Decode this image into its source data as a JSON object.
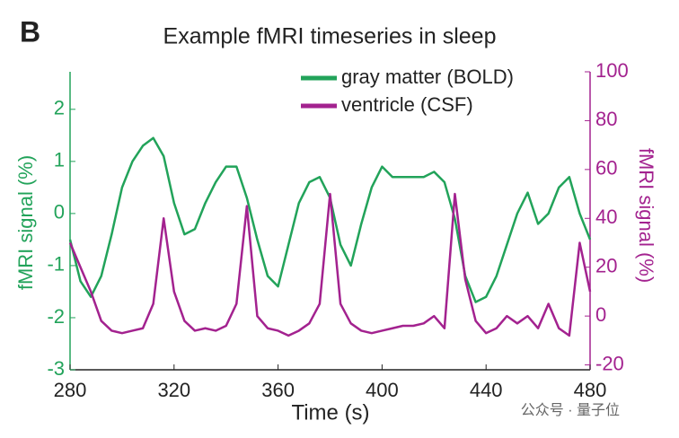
{
  "panel_label": "B",
  "watermark": "公众号 · 量子位",
  "chart_data": {
    "type": "line",
    "title": "Example fMRI timeseries in sleep",
    "x_label": "Time (s)",
    "y_label": "fMRI signal (%)",
    "y2_label": "fMRI signal (%)",
    "x": [
      280,
      284,
      288,
      292,
      296,
      300,
      304,
      308,
      312,
      316,
      320,
      324,
      328,
      332,
      336,
      340,
      344,
      348,
      352,
      356,
      360,
      364,
      368,
      372,
      376,
      380,
      384,
      388,
      392,
      396,
      400,
      404,
      408,
      412,
      416,
      420,
      424,
      428,
      432,
      436,
      440,
      444,
      448,
      452,
      456,
      460,
      464,
      468,
      472,
      476,
      480
    ],
    "series": [
      {
        "name": "gray matter (BOLD)",
        "color": "#22a35a",
        "values": [
          -0.5,
          -1.3,
          -1.6,
          -1.2,
          -0.4,
          0.5,
          1.0,
          1.3,
          1.45,
          1.1,
          0.2,
          -0.4,
          -0.3,
          0.2,
          0.6,
          0.9,
          0.9,
          0.3,
          -0.5,
          -1.2,
          -1.4,
          -0.6,
          0.2,
          0.6,
          0.7,
          0.3,
          -0.6,
          -1.0,
          -0.2,
          0.5,
          0.9,
          0.7,
          0.7,
          0.7,
          0.7,
          0.8,
          0.6,
          -0.1,
          -1.2,
          -1.7,
          -1.6,
          -1.2,
          -0.6,
          0.0,
          0.4,
          -0.2,
          0.0,
          0.5,
          0.7,
          0.0,
          -0.5
        ]
      },
      {
        "name": "ventricle (CSF)",
        "color": "#a3228f",
        "axis": "y2",
        "values": [
          30,
          20,
          10,
          -2,
          -6,
          -7,
          -6,
          -5,
          5,
          40,
          10,
          -2,
          -6,
          -5,
          -6,
          -4,
          5,
          45,
          0,
          -5,
          -6,
          -8,
          -6,
          -3,
          5,
          50,
          5,
          -3,
          -6,
          -7,
          -6,
          -5,
          -4,
          -4,
          -3,
          0,
          -5,
          50,
          15,
          -2,
          -7,
          -5,
          0,
          -3,
          0,
          -5,
          5,
          -5,
          -8,
          30,
          10
        ]
      }
    ],
    "xlim": [
      280,
      480
    ],
    "xticks": [
      280,
      320,
      360,
      400,
      440,
      480
    ],
    "ylim": [
      -3,
      2.72
    ],
    "yticks": [
      -3,
      -2,
      -1,
      0,
      1,
      2
    ],
    "y2lim": [
      -22,
      100
    ],
    "y2ticks": [
      -20,
      0,
      20,
      40,
      60,
      80,
      100
    ],
    "legend": "upper right"
  }
}
